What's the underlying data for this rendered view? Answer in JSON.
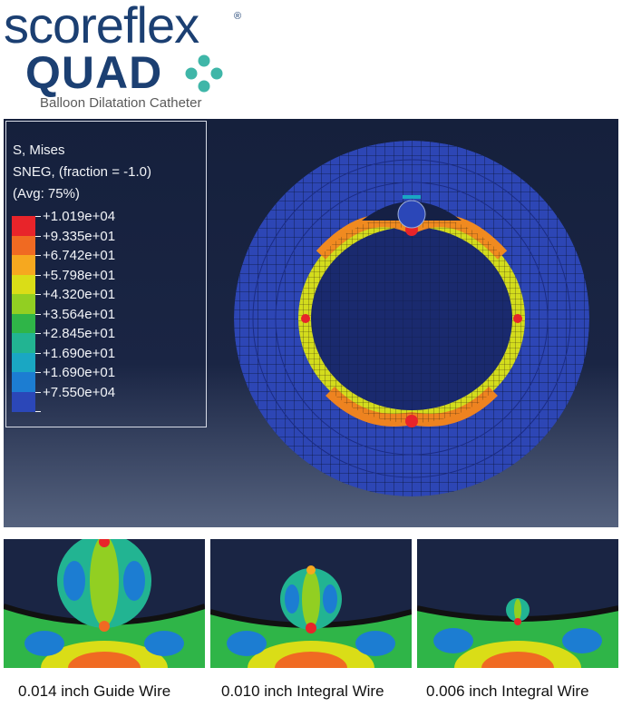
{
  "logo": {
    "brand_line1": "scoreflex",
    "registered_mark": "®",
    "brand_line2": "QUAD",
    "subtitle": "Balloon Dilatation Catheter",
    "icon": "four-dot-cross-icon",
    "colors": {
      "navy": "#1b3f72",
      "teal": "#3fb6a8"
    }
  },
  "legend": {
    "title_line1": "S, Mises",
    "title_line2": "SNEG, (fraction = -1.0)",
    "title_line3": "(Avg: 75%)",
    "entries": [
      {
        "label": "+1.019e+04",
        "color": "#e8242a"
      },
      {
        "label": "+9.335e+01",
        "color": "#f06a22"
      },
      {
        "label": "+6.742e+01",
        "color": "#f6a81f"
      },
      {
        "label": "+5.798e+01",
        "color": "#dadd17"
      },
      {
        "label": "+4.320e+01",
        "color": "#92cf22"
      },
      {
        "label": "+3.564e+01",
        "color": "#2fb548"
      },
      {
        "label": "+2.845e+01",
        "color": "#22b492"
      },
      {
        "label": "+1.690e+01",
        "color": "#1aa7c3"
      },
      {
        "label": "+1.690e+01",
        "color": "#1c7dd2"
      },
      {
        "label": "+7.550e+04",
        "color": "#2b47b8"
      }
    ]
  },
  "details": [
    {
      "caption": "0.014 inch Guide Wire"
    },
    {
      "caption": "0.010 inch Integral Wire"
    },
    {
      "caption": "0.006 inch Integral Wire"
    }
  ]
}
